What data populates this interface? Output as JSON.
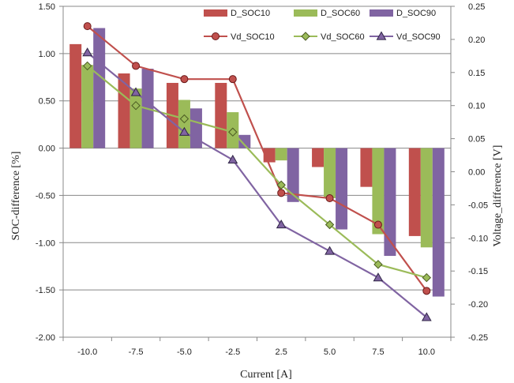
{
  "chart_data": {
    "type": "bar",
    "categories": [
      "-10.0",
      "-7.5",
      "-5.0",
      "-2.5",
      "2.5",
      "5.0",
      "7.5",
      "10.0"
    ],
    "xlabel": "Current [A]",
    "ylabel": "SOC-difference [%]",
    "y2label": "Voltage_difference [V]",
    "ylim": [
      -2.0,
      1.5
    ],
    "y2lim": [
      -0.25,
      0.25
    ],
    "yticks": [
      "1.50",
      "1.00",
      "0.50",
      "0.00",
      "-0.50",
      "-1.00",
      "-1.50",
      "-2.00"
    ],
    "y2ticks": [
      "0.25",
      "0.20",
      "0.15",
      "0.10",
      "0.05",
      "0.00",
      "-0.05",
      "-0.10",
      "-0.15",
      "-0.20",
      "-0.25"
    ],
    "grid": "horizontal major gridlines",
    "legend_position": "top-right",
    "bar_series": [
      {
        "name": "D_SOC10",
        "color": "#c0504d",
        "values": [
          1.1,
          0.79,
          0.69,
          0.69,
          -0.15,
          -0.2,
          -0.41,
          -0.93
        ]
      },
      {
        "name": "D_SOC60",
        "color": "#9bbb59",
        "values": [
          0.88,
          0.63,
          0.51,
          0.38,
          -0.13,
          -0.53,
          -0.91,
          -1.05
        ]
      },
      {
        "name": "D_SOC90",
        "color": "#8064a2",
        "values": [
          1.27,
          0.84,
          0.42,
          0.14,
          -0.57,
          -0.86,
          -1.14,
          -1.57
        ]
      }
    ],
    "line_series": [
      {
        "name": "Vd_SOC10",
        "color": "#c0504d",
        "marker": "circle",
        "axis": "right",
        "values": [
          0.22,
          0.16,
          0.14,
          0.14,
          -0.032,
          -0.04,
          -0.08,
          -0.18
        ]
      },
      {
        "name": "Vd_SOC60",
        "color": "#9bbb59",
        "marker": "diamond",
        "axis": "right",
        "values": [
          0.16,
          0.1,
          0.08,
          0.06,
          -0.02,
          -0.08,
          -0.14,
          -0.16
        ]
      },
      {
        "name": "Vd_SOC90",
        "color": "#8064a2",
        "marker": "triangle",
        "axis": "right",
        "values": [
          0.18,
          0.12,
          0.06,
          0.018,
          -0.08,
          -0.12,
          -0.16,
          -0.22
        ]
      }
    ]
  }
}
